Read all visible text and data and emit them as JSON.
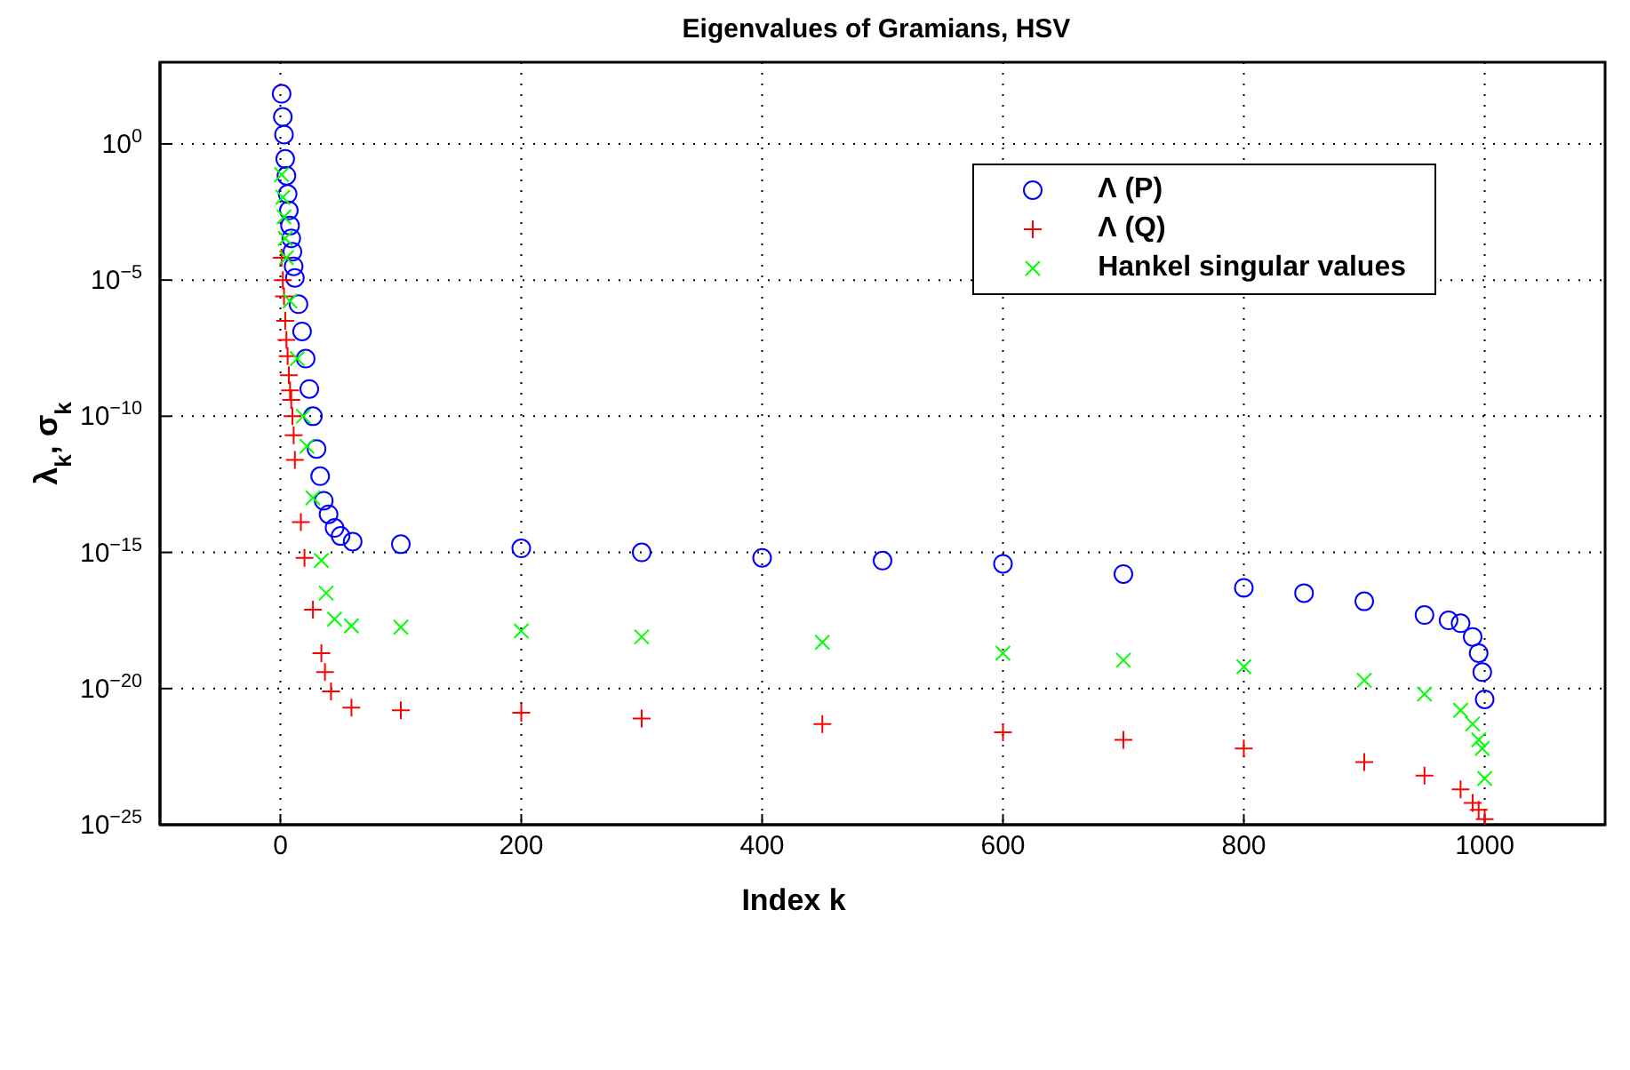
{
  "chart_data": {
    "type": "scatter",
    "title": "Eigenvalues of Gramians, HSV",
    "xlabel": "Index k",
    "ylabel": "λ$_{k}$, σ$_{k}$",
    "log": "y",
    "grid": true,
    "legend": "top right",
    "xlim": [
      -100,
      1100
    ],
    "xticks": [
      0,
      200,
      400,
      600,
      800,
      1000
    ],
    "ylim": [
      1e-25,
      1000
    ],
    "yticks": [
      {
        "value": 1,
        "label": "10$^{0}$"
      },
      {
        "value": 1e-05,
        "label": "10$^{−5}$"
      },
      {
        "value": 1e-10,
        "label": "10$^{−10}$"
      },
      {
        "value": 1e-15,
        "label": "10$^{−15}$"
      },
      {
        "value": 1e-20,
        "label": "10$^{−20}$"
      },
      {
        "value": 1e-25,
        "label": "10$^{−25}$"
      }
    ],
    "series": [
      {
        "name": "Λ (P)",
        "color": "#0000ff",
        "marker": "circle",
        "x": [
          1,
          2,
          3,
          4,
          5,
          6,
          7,
          8,
          9,
          10,
          11,
          12,
          15,
          18,
          21,
          24,
          27,
          30,
          33,
          36,
          40,
          45,
          50,
          60,
          100,
          200,
          300,
          400,
          500,
          600,
          700,
          800,
          850,
          900,
          950,
          970,
          980,
          990,
          995,
          998,
          1000
        ],
        "values": [
          69,
          9.8,
          2.2,
          0.28,
          0.068,
          0.0145,
          0.0036,
          0.001,
          0.00034,
          0.00011,
          3.2e-05,
          1.2e-05,
          1.3e-06,
          1.3e-07,
          1.3e-08,
          1e-09,
          1e-10,
          6.3e-12,
          6.3e-13,
          7.9e-14,
          2.5e-14,
          7.9e-15,
          4e-15,
          2.5e-15,
          2e-15,
          1.4e-15,
          1e-15,
          6.3e-16,
          5e-16,
          3.8e-16,
          1.6e-16,
          5e-17,
          3.2e-17,
          1.6e-17,
          5e-18,
          3.2e-18,
          2.5e-18,
          7.9e-19,
          2e-19,
          4e-20,
          4e-21
        ]
      },
      {
        "name": "Λ (Q)",
        "color": "#ff0000",
        "marker": "plus",
        "x": [
          1,
          2,
          3,
          4,
          5,
          6,
          7,
          8,
          9,
          10,
          11,
          12,
          17,
          20,
          27,
          34,
          37,
          42,
          59,
          100,
          200,
          300,
          450,
          600,
          700,
          800,
          900,
          950,
          980,
          990,
          995,
          1000
        ],
        "values": [
          6.6e-05,
          1e-05,
          2.5e-06,
          3.2e-07,
          6.3e-08,
          1.6e-08,
          3.2e-09,
          8.9e-10,
          4e-10,
          1e-10,
          2e-11,
          2.5e-12,
          1.3e-14,
          6.3e-16,
          7.9e-18,
          2e-19,
          4e-20,
          7.9e-21,
          2e-21,
          1.6e-21,
          1.3e-21,
          7.9e-22,
          5e-22,
          2.5e-22,
          1.3e-22,
          6.3e-23,
          2e-23,
          6.3e-24,
          2e-24,
          6.3e-25,
          3.5e-25,
          1.6e-25
        ]
      },
      {
        "name": "Hankel singular values",
        "color": "#00ff00",
        "marker": "cross",
        "x": [
          1,
          2,
          3,
          4,
          5,
          8,
          14,
          19,
          22,
          27,
          34,
          38,
          45,
          59,
          100,
          200,
          300,
          450,
          600,
          700,
          800,
          900,
          950,
          980,
          990,
          995,
          998,
          1000
        ],
        "values": [
          0.074,
          0.011,
          0.0021,
          0.00034,
          6.6e-05,
          1.7e-06,
          1.3e-08,
          1e-10,
          7.9e-12,
          1e-13,
          5e-16,
          3.2e-17,
          3.5e-18,
          2e-18,
          1.8e-18,
          1.3e-18,
          7.9e-19,
          5e-19,
          2e-19,
          1.1e-19,
          6.3e-20,
          2e-20,
          6.3e-21,
          1.6e-21,
          5e-22,
          1.3e-22,
          6.3e-23,
          5e-24
        ]
      }
    ]
  }
}
